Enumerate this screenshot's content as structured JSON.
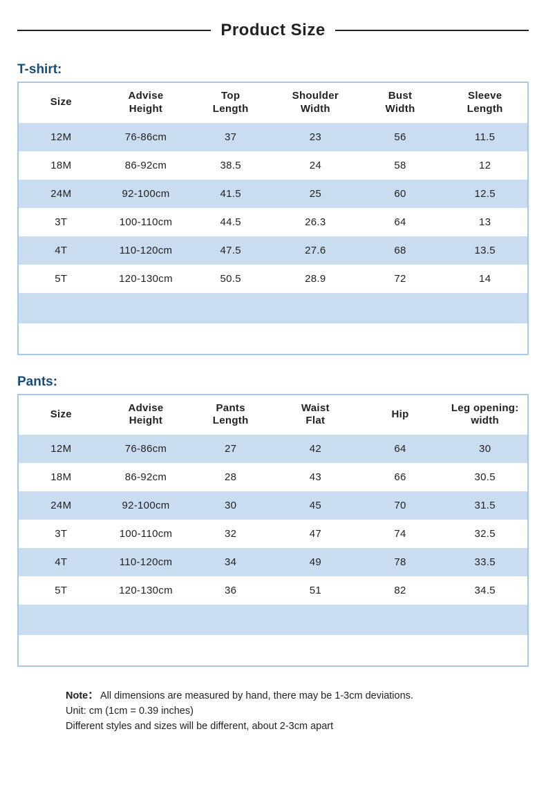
{
  "title": "Product Size",
  "colors": {
    "band_blue": "#c9dcf0",
    "band_white": "#ffffff",
    "border": "#a8c8e8",
    "label": "#1a4a7a",
    "text": "#222222"
  },
  "tshirt": {
    "label": "T-shirt:",
    "columns": [
      "Size",
      "Advise\nHeight",
      "Top\nLength",
      "Shoulder\nWidth",
      "Bust\nWidth",
      "Sleeve\nLength"
    ],
    "rows": [
      [
        "12M",
        "76-86cm",
        "37",
        "23",
        "56",
        "11.5"
      ],
      [
        "18M",
        "86-92cm",
        "38.5",
        "24",
        "58",
        "12"
      ],
      [
        "24M",
        "92-100cm",
        "41.5",
        "25",
        "60",
        "12.5"
      ],
      [
        "3T",
        "100-110cm",
        "44.5",
        "26.3",
        "64",
        "13"
      ],
      [
        "4T",
        "110-120cm",
        "47.5",
        "27.6",
        "68",
        "13.5"
      ],
      [
        "5T",
        "120-130cm",
        "50.5",
        "28.9",
        "72",
        "14"
      ]
    ]
  },
  "pants": {
    "label": "Pants:",
    "columns": [
      "Size",
      "Advise\nHeight",
      "Pants\nLength",
      "Waist\nFlat",
      "Hip",
      "Leg opening:\nwidth"
    ],
    "rows": [
      [
        "12M",
        "76-86cm",
        "27",
        "42",
        "64",
        "30"
      ],
      [
        "18M",
        "86-92cm",
        "28",
        "43",
        "66",
        "30.5"
      ],
      [
        "24M",
        "92-100cm",
        "30",
        "45",
        "70",
        "31.5"
      ],
      [
        "3T",
        "100-110cm",
        "32",
        "47",
        "74",
        "32.5"
      ],
      [
        "4T",
        "110-120cm",
        "34",
        "49",
        "78",
        "33.5"
      ],
      [
        "5T",
        "120-130cm",
        "36",
        "51",
        "82",
        "34.5"
      ]
    ]
  },
  "note": {
    "label": "Note：",
    "line1": "All dimensions are measured by hand, there may be 1-3cm deviations.",
    "line2": "Unit: cm (1cm = 0.39 inches)",
    "line3": "Different styles and sizes will be different, about 2-3cm apart"
  }
}
